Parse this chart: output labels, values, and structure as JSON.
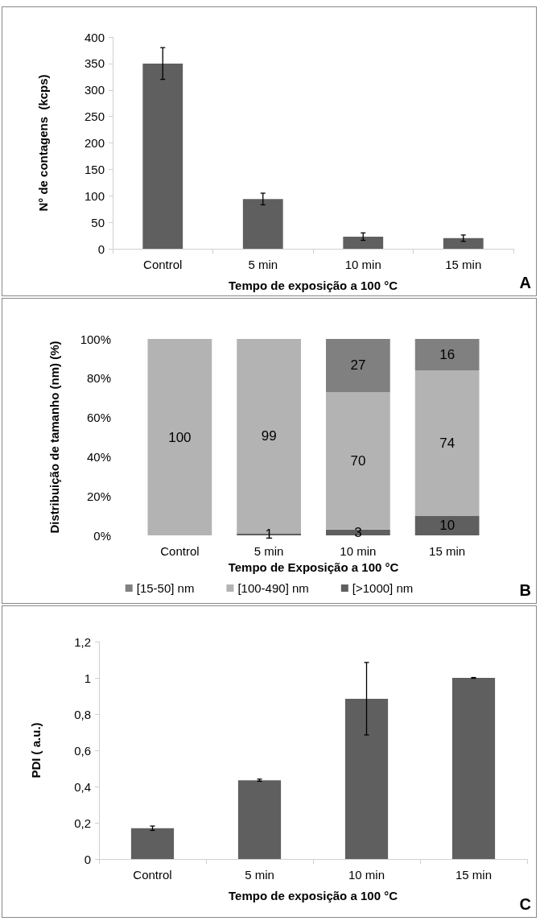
{
  "chart_data": [
    {
      "type": "bar",
      "xlabel": "Tempo de exposição a 100 °C",
      "ylabel": "N° de contagens  (kcps)",
      "categories": [
        "Control",
        "5 min",
        "10 min",
        "15 min"
      ],
      "color": "#5f5f5f",
      "values": [
        350,
        94,
        23,
        20
      ],
      "errors": [
        30,
        11,
        7,
        6
      ],
      "ylim": [
        0,
        400
      ],
      "yticks": [
        0,
        50,
        100,
        150,
        200,
        250,
        300,
        350,
        400
      ],
      "grid": false,
      "annotations": [
        "A"
      ]
    },
    {
      "type": "bar",
      "xlabel": "Tempo de Exposição a 100 °C",
      "ylabel": "Distribuição de tamanho (nm) (%)",
      "categories": [
        "Control",
        "5 min",
        "10 min",
        "15 min"
      ],
      "stacked": true,
      "data_labels": true,
      "legend": "bottom",
      "series": [
        {
          "name": "[>1000] nm",
          "color": "#5f5f5f",
          "values": [
            null,
            1,
            3,
            10
          ]
        },
        {
          "name": "[100-490] nm",
          "color": "#b3b3b3",
          "values": [
            100,
            99,
            70,
            74
          ]
        },
        {
          "name": "[15-50] nm",
          "color": "#808080",
          "values": [
            null,
            null,
            27,
            16
          ]
        }
      ],
      "ylim": [
        0,
        100
      ],
      "yticks": [
        {
          "value": 0,
          "label": "0%"
        },
        {
          "value": 20,
          "label": "20%"
        },
        {
          "value": 40,
          "label": "40%"
        },
        {
          "value": 60,
          "label": "60%"
        },
        {
          "value": 80,
          "label": "80%"
        },
        {
          "value": 100,
          "label": "100%"
        }
      ],
      "grid": false,
      "annotations": [
        "B"
      ]
    },
    {
      "type": "bar",
      "xlabel": "Tempo de exposição a 100 °C",
      "ylabel": "PDI ( a.u.)",
      "categories": [
        "Control",
        "5 min",
        "10 min",
        "15 min"
      ],
      "color": "#5f5f5f",
      "values": [
        0.17,
        0.435,
        0.885,
        1.0
      ],
      "errors": [
        0.012,
        0.006,
        0.2,
        0.002
      ],
      "ylim": [
        0,
        1.2
      ],
      "yticks": [
        0,
        {
          "value": 0.2,
          "label": "0,2"
        },
        {
          "value": 0.4,
          "label": "0,4"
        },
        {
          "value": 0.6,
          "label": "0,6"
        },
        {
          "value": 0.8,
          "label": "0,8"
        },
        1,
        {
          "value": 1.2,
          "label": "1,2"
        }
      ],
      "grid": false,
      "annotations": [
        "C"
      ]
    }
  ]
}
